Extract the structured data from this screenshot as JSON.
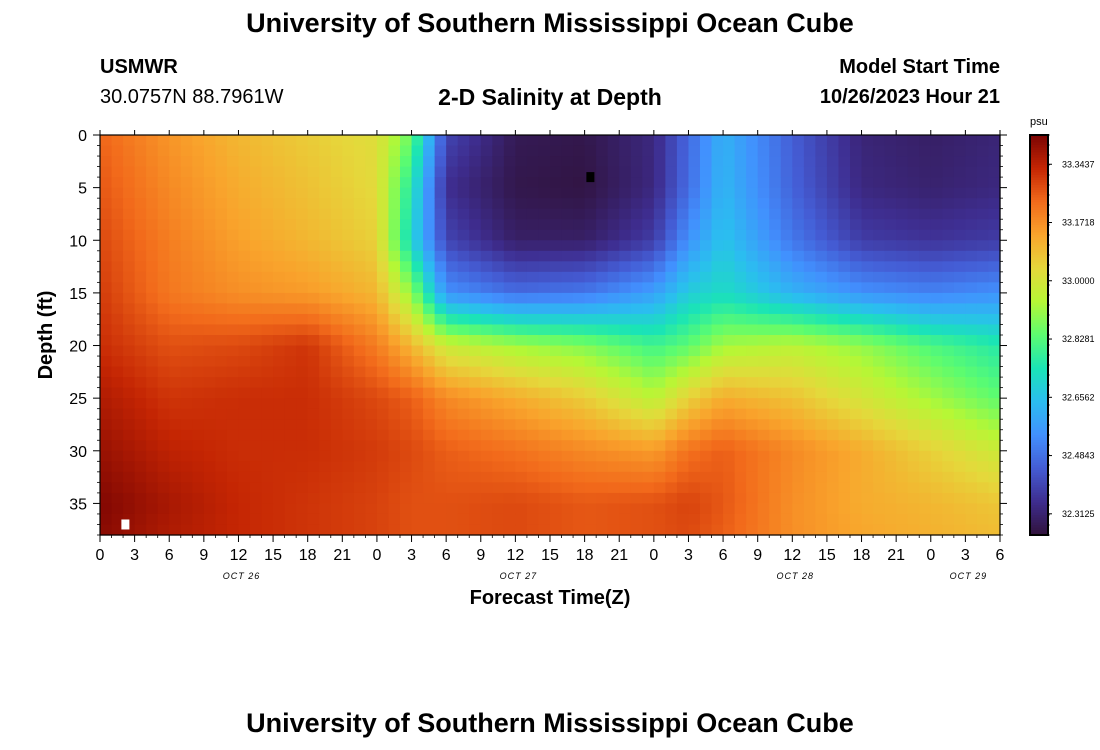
{
  "header": {
    "title": "University of Southern Mississippi Ocean Cube",
    "station": "USMWR",
    "coords": "30.0757N  88.7961W",
    "subtitle": "2-D Salinity at Depth",
    "start_label": "Model Start Time",
    "start_value": "10/26/2023 Hour 21"
  },
  "footer": {
    "title": "University of Southern Mississippi Ocean Cube"
  },
  "colorbar": {
    "unit": "psu",
    "ticks": [
      "33.3437",
      "33.1718",
      "33.0000",
      "32.8281",
      "32.6562",
      "32.4843",
      "32.3125"
    ],
    "colors": [
      "#7a0403",
      "#c42503",
      "#f26a1b",
      "#f9a42c",
      "#e5d83b",
      "#b6f735",
      "#5cfc70",
      "#1ae4b6",
      "#2bbdf0",
      "#4290fe",
      "#445cd4",
      "#3e2d8f",
      "#30123b"
    ]
  },
  "chart_data": {
    "type": "heatmap",
    "title": "2-D Salinity at Depth",
    "xlabel": "Forecast Time(Z)",
    "ylabel": "Depth (ft)",
    "x_tick_labels": [
      "0",
      "3",
      "6",
      "9",
      "12",
      "15",
      "18",
      "21",
      "0",
      "3",
      "6",
      "9",
      "12",
      "15",
      "18",
      "21",
      "0",
      "3",
      "6",
      "9",
      "12",
      "15",
      "18",
      "21",
      "0",
      "3",
      "6"
    ],
    "date_labels": [
      "OCT 26",
      "OCT 27",
      "OCT 28",
      "OCT 29"
    ],
    "x_range_hours": [
      0,
      78
    ],
    "y_ticks": [
      0,
      5,
      10,
      15,
      20,
      25,
      30,
      35
    ],
    "ylim_ft": [
      0,
      38
    ],
    "z_range_psu": [
      32.25,
      33.43
    ],
    "depths_ft": [
      0,
      5,
      10,
      15,
      20,
      25,
      30,
      35,
      38
    ],
    "hours": [
      0,
      6,
      12,
      18,
      24,
      27,
      30,
      36,
      42,
      48,
      51,
      54,
      60,
      66,
      72,
      78
    ],
    "salinity_psu": [
      [
        33.24,
        33.16,
        33.1,
        33.06,
        33.02,
        32.85,
        32.4,
        32.28,
        32.27,
        32.33,
        32.47,
        32.62,
        32.45,
        32.32,
        32.3,
        32.32
      ],
      [
        33.26,
        33.18,
        33.12,
        33.08,
        33.03,
        32.75,
        32.35,
        32.27,
        32.26,
        32.33,
        32.48,
        32.63,
        32.46,
        32.33,
        32.31,
        32.33
      ],
      [
        33.28,
        33.2,
        33.14,
        33.1,
        33.05,
        32.7,
        32.4,
        32.3,
        32.3,
        32.38,
        32.55,
        32.66,
        32.5,
        32.38,
        32.36,
        32.38
      ],
      [
        33.3,
        33.21,
        33.17,
        33.15,
        33.1,
        32.9,
        32.55,
        32.48,
        32.5,
        32.58,
        32.68,
        32.72,
        32.62,
        32.55,
        32.52,
        32.55
      ],
      [
        33.32,
        33.27,
        33.28,
        33.31,
        33.2,
        33.1,
        32.98,
        32.92,
        32.88,
        32.8,
        32.84,
        32.92,
        32.95,
        32.9,
        32.82,
        32.76
      ],
      [
        33.36,
        33.31,
        33.32,
        33.32,
        33.28,
        33.25,
        33.18,
        33.12,
        33.06,
        32.95,
        33.05,
        33.12,
        33.08,
        33.0,
        32.92,
        32.84
      ],
      [
        33.39,
        33.34,
        33.32,
        33.32,
        33.3,
        33.28,
        33.25,
        33.22,
        33.18,
        33.15,
        33.22,
        33.25,
        33.18,
        33.12,
        33.05,
        32.98
      ],
      [
        33.42,
        33.37,
        33.33,
        33.31,
        33.29,
        33.27,
        33.27,
        33.28,
        33.26,
        33.27,
        33.29,
        33.26,
        33.17,
        33.12,
        33.1,
        33.07
      ],
      [
        33.41,
        33.36,
        33.33,
        33.31,
        33.29,
        33.27,
        33.27,
        33.28,
        33.26,
        33.27,
        33.28,
        33.25,
        33.17,
        33.13,
        33.11,
        33.09
      ]
    ],
    "markers": [
      {
        "name": "min-marker",
        "hour": 42.5,
        "depth_ft": 4,
        "color": "#000000"
      },
      {
        "name": "max-marker",
        "hour": 2.2,
        "depth_ft": 37,
        "color": "#ffffff"
      }
    ]
  }
}
